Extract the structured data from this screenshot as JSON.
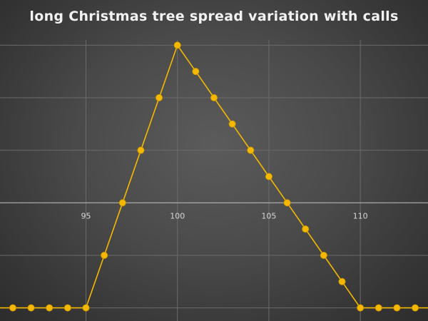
{
  "chart_data": {
    "type": "line",
    "title": "long Christmas tree spread variation with calls",
    "xlabel": "",
    "ylabel": "",
    "xlim": [
      90.3,
      113.7
    ],
    "ylim": [
      -4.5,
      6.2
    ],
    "x_ticks": [
      95,
      100,
      105,
      110
    ],
    "y_gridlines": [
      -4,
      -2,
      0,
      2,
      4,
      6
    ],
    "grid": true,
    "legend": "none",
    "colors": {
      "series": "#f5b800",
      "grid": "#6a6a6a",
      "axis": "#b4b4b4"
    },
    "series": [
      {
        "x": [
          90,
          91,
          92,
          93,
          94,
          95,
          96,
          97,
          98,
          99,
          100,
          101,
          102,
          103,
          104,
          105,
          106,
          107,
          108,
          109,
          110,
          111,
          112,
          113,
          114
        ],
        "y": [
          -4,
          -4,
          -4,
          -4,
          -4,
          -4,
          -2,
          0,
          2,
          4,
          6,
          5,
          4,
          3,
          2,
          1,
          0,
          -1,
          -2,
          -3,
          -4,
          -4,
          -4,
          -4,
          -4
        ]
      }
    ]
  }
}
